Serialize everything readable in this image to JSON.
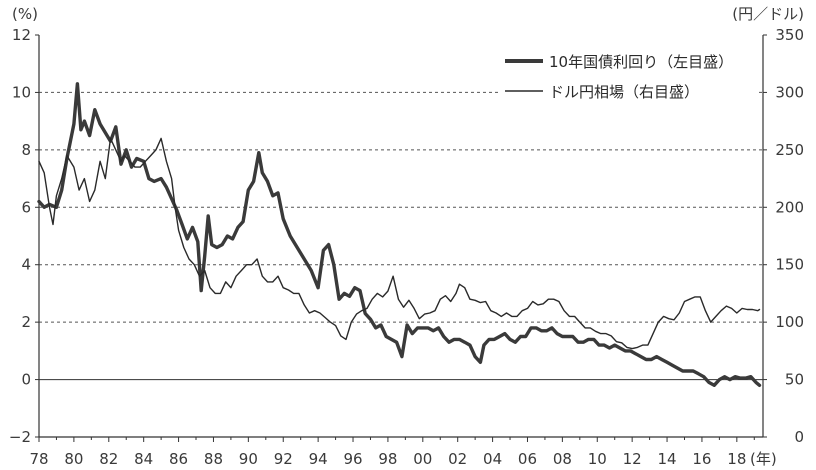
{
  "chart_data": {
    "type": "line",
    "left_unit": "(%)",
    "right_unit": "(円／ドル)",
    "x_unit_suffix": "(年)",
    "x_tick_labels": [
      "78",
      "80",
      "82",
      "84",
      "86",
      "88",
      "90",
      "92",
      "94",
      "96",
      "98",
      "00",
      "02",
      "04",
      "06",
      "08",
      "10",
      "12",
      "14",
      "16",
      "18"
    ],
    "y_left": {
      "ylim": [
        -2,
        12
      ],
      "ticks": [
        "−2",
        "0",
        "2",
        "4",
        "6",
        "8",
        "10",
        "12"
      ]
    },
    "y_right": {
      "ylim": [
        0,
        350
      ],
      "ticks": [
        "0",
        "50",
        "100",
        "150",
        "200",
        "250",
        "300",
        "350"
      ]
    },
    "grid": "horizontal dashed",
    "legend_placement": "top-right",
    "series": [
      {
        "name": "10年国債利回り（左目盛）",
        "axis": "left",
        "style": "thick",
        "color": "#3a3a3a",
        "x": [
          1978.0,
          1978.3,
          1978.6,
          1979.0,
          1979.3,
          1979.6,
          1980.0,
          1980.2,
          1980.4,
          1980.6,
          1980.9,
          1981.2,
          1981.5,
          1981.8,
          1982.1,
          1982.4,
          1982.7,
          1983.0,
          1983.3,
          1983.6,
          1984.0,
          1984.3,
          1984.6,
          1985.0,
          1985.3,
          1985.6,
          1985.9,
          1986.2,
          1986.5,
          1986.8,
          1987.1,
          1987.3,
          1987.5,
          1987.7,
          1987.9,
          1988.2,
          1988.5,
          1988.8,
          1989.1,
          1989.4,
          1989.7,
          1990.0,
          1990.3,
          1990.6,
          1990.8,
          1991.1,
          1991.4,
          1991.7,
          1992.0,
          1992.4,
          1992.8,
          1993.2,
          1993.6,
          1994.0,
          1994.3,
          1994.6,
          1994.9,
          1995.2,
          1995.5,
          1995.8,
          1996.1,
          1996.4,
          1996.7,
          1997.0,
          1997.3,
          1997.6,
          1997.9,
          1998.2,
          1998.5,
          1998.8,
          1999.1,
          1999.4,
          1999.7,
          2000.0,
          2000.3,
          2000.6,
          2000.9,
          2001.2,
          2001.5,
          2001.8,
          2002.1,
          2002.4,
          2002.7,
          2003.0,
          2003.3,
          2003.5,
          2003.8,
          2004.1,
          2004.4,
          2004.7,
          2005.0,
          2005.3,
          2005.6,
          2005.9,
          2006.2,
          2006.5,
          2006.8,
          2007.1,
          2007.4,
          2007.7,
          2008.0,
          2008.3,
          2008.6,
          2008.9,
          2009.2,
          2009.5,
          2009.8,
          2010.1,
          2010.4,
          2010.7,
          2011.0,
          2011.3,
          2011.6,
          2011.9,
          2012.2,
          2012.5,
          2012.8,
          2013.1,
          2013.4,
          2013.7,
          2014.0,
          2014.3,
          2014.6,
          2014.9,
          2015.2,
          2015.5,
          2015.8,
          2016.1,
          2016.4,
          2016.7,
          2017.0,
          2017.3,
          2017.6,
          2017.9,
          2018.2,
          2018.5,
          2018.8,
          2019.1,
          2019.3
        ],
        "values": [
          6.2,
          6.0,
          6.1,
          6.0,
          6.6,
          7.7,
          8.9,
          10.3,
          8.7,
          9.0,
          8.5,
          9.4,
          8.9,
          8.6,
          8.3,
          8.8,
          7.5,
          8.0,
          7.4,
          7.7,
          7.6,
          7.0,
          6.9,
          7.0,
          6.7,
          6.3,
          5.9,
          5.4,
          4.9,
          5.3,
          4.8,
          3.1,
          4.3,
          5.7,
          4.7,
          4.6,
          4.7,
          5.0,
          4.9,
          5.3,
          5.5,
          6.6,
          6.9,
          7.9,
          7.2,
          6.9,
          6.4,
          6.5,
          5.6,
          5.0,
          4.6,
          4.2,
          3.8,
          3.2,
          4.5,
          4.7,
          4.0,
          2.8,
          3.0,
          2.9,
          3.2,
          3.1,
          2.3,
          2.1,
          1.8,
          1.9,
          1.5,
          1.4,
          1.3,
          0.8,
          1.9,
          1.6,
          1.8,
          1.8,
          1.8,
          1.7,
          1.8,
          1.5,
          1.3,
          1.4,
          1.4,
          1.3,
          1.2,
          0.8,
          0.6,
          1.2,
          1.4,
          1.4,
          1.5,
          1.6,
          1.4,
          1.3,
          1.5,
          1.5,
          1.8,
          1.8,
          1.7,
          1.7,
          1.8,
          1.6,
          1.5,
          1.5,
          1.5,
          1.3,
          1.3,
          1.4,
          1.4,
          1.2,
          1.2,
          1.1,
          1.2,
          1.1,
          1.0,
          1.0,
          0.9,
          0.8,
          0.7,
          0.7,
          0.8,
          0.7,
          0.6,
          0.5,
          0.4,
          0.3,
          0.3,
          0.3,
          0.2,
          0.1,
          -0.1,
          -0.2,
          0.0,
          0.1,
          0.0,
          0.1,
          0.05,
          0.05,
          0.1,
          -0.1,
          -0.2
        ]
      },
      {
        "name": "ドル円相場（右目盛）",
        "axis": "right",
        "style": "thin",
        "color": "#2a2a2a",
        "x": [
          1978.0,
          1978.3,
          1978.6,
          1978.8,
          1979.0,
          1979.3,
          1979.6,
          1980.0,
          1980.3,
          1980.6,
          1980.9,
          1981.2,
          1981.5,
          1981.8,
          1982.1,
          1982.4,
          1982.7,
          1982.9,
          1983.2,
          1983.5,
          1983.8,
          1984.1,
          1984.4,
          1984.7,
          1985.0,
          1985.3,
          1985.6,
          1985.8,
          1986.0,
          1986.3,
          1986.6,
          1986.9,
          1987.2,
          1987.5,
          1987.8,
          1988.1,
          1988.4,
          1988.7,
          1989.0,
          1989.3,
          1989.6,
          1989.9,
          1990.2,
          1990.5,
          1990.8,
          1991.1,
          1991.4,
          1991.7,
          1992.0,
          1992.3,
          1992.6,
          1992.9,
          1993.2,
          1993.5,
          1993.8,
          1994.1,
          1994.4,
          1994.7,
          1995.0,
          1995.3,
          1995.6,
          1995.9,
          1996.2,
          1996.5,
          1996.8,
          1997.1,
          1997.4,
          1997.7,
          1998.0,
          1998.3,
          1998.6,
          1998.9,
          1999.2,
          1999.5,
          1999.8,
          2000.1,
          2000.4,
          2000.7,
          2001.0,
          2001.3,
          2001.6,
          2001.9,
          2002.1,
          2002.4,
          2002.7,
          2003.0,
          2003.3,
          2003.6,
          2003.9,
          2004.2,
          2004.5,
          2004.8,
          2005.1,
          2005.4,
          2005.7,
          2006.0,
          2006.3,
          2006.6,
          2006.9,
          2007.2,
          2007.5,
          2007.8,
          2008.1,
          2008.4,
          2008.7,
          2009.0,
          2009.3,
          2009.6,
          2009.9,
          2010.2,
          2010.5,
          2010.8,
          2011.1,
          2011.4,
          2011.7,
          2012.0,
          2012.3,
          2012.6,
          2012.9,
          2013.2,
          2013.5,
          2013.8,
          2014.1,
          2014.4,
          2014.7,
          2015.0,
          2015.3,
          2015.6,
          2015.9,
          2016.2,
          2016.5,
          2016.8,
          2017.1,
          2017.4,
          2017.7,
          2018.0,
          2018.3,
          2018.6,
          2018.9,
          2019.2,
          2019.3
        ],
        "values": [
          240,
          230,
          200,
          185,
          210,
          225,
          245,
          235,
          215,
          225,
          205,
          215,
          240,
          225,
          260,
          250,
          240,
          245,
          240,
          235,
          235,
          240,
          245,
          250,
          260,
          240,
          225,
          200,
          180,
          165,
          155,
          150,
          140,
          145,
          130,
          125,
          125,
          135,
          130,
          140,
          145,
          150,
          150,
          155,
          140,
          135,
          135,
          140,
          130,
          128,
          125,
          125,
          115,
          108,
          110,
          108,
          104,
          100,
          97,
          88,
          85,
          100,
          107,
          110,
          112,
          120,
          125,
          122,
          127,
          140,
          120,
          113,
          119,
          112,
          103,
          107,
          108,
          110,
          120,
          123,
          118,
          125,
          133,
          130,
          120,
          119,
          117,
          118,
          110,
          108,
          105,
          108,
          105,
          105,
          110,
          112,
          118,
          115,
          116,
          120,
          120,
          118,
          110,
          105,
          105,
          100,
          95,
          95,
          92,
          90,
          90,
          88,
          83,
          82,
          78,
          77,
          78,
          80,
          80,
          90,
          100,
          105,
          103,
          102,
          108,
          118,
          120,
          122,
          122,
          110,
          100,
          105,
          110,
          114,
          112,
          108,
          112,
          111,
          111,
          110,
          111
        ]
      }
    ]
  }
}
